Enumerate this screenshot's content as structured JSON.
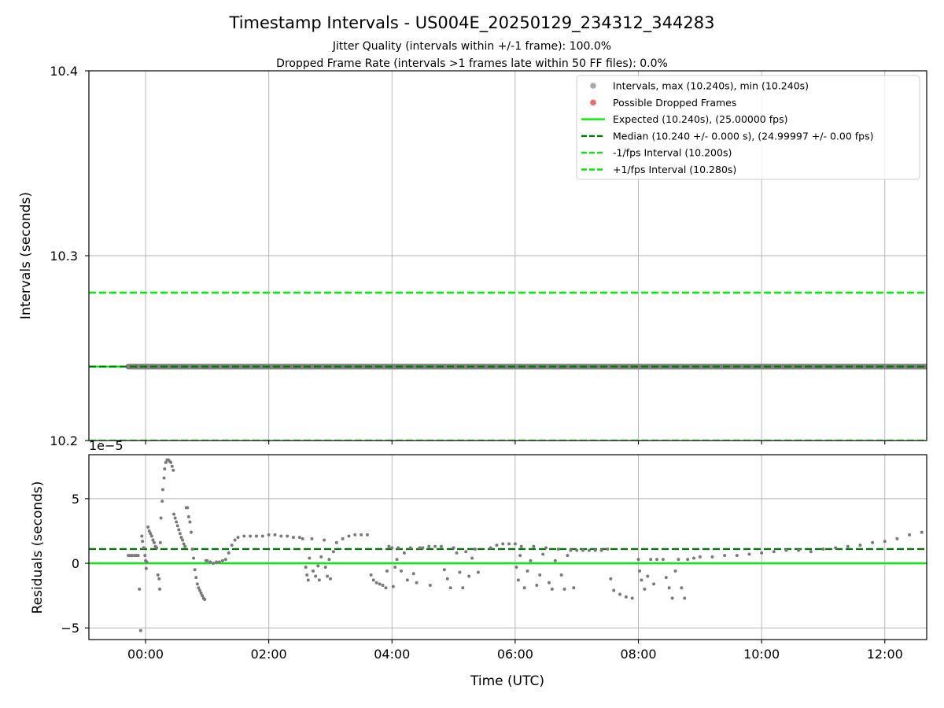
{
  "chart_data": {
    "type": "scatter",
    "title": "Timestamp Intervals - US004E_20250129_234312_344283",
    "subtitle_lines": [
      "Jitter Quality (intervals within +/-1 frame): 100.0%",
      "Dropped Frame Rate (intervals >1 frames late within 50 FF files): 0.0%"
    ],
    "x_axis": {
      "label": "Time (UTC)",
      "unit": "hours since 00:00 UTC",
      "range": [
        -0.92,
        12.68
      ],
      "ticks": [
        0,
        2,
        4,
        6,
        8,
        10,
        12
      ],
      "tick_labels": [
        "00:00",
        "02:00",
        "04:00",
        "06:00",
        "08:00",
        "10:00",
        "12:00"
      ]
    },
    "top_panel": {
      "ylabel": "Intervals (seconds)",
      "ylim": [
        10.2,
        10.4
      ],
      "yticks": [
        10.2,
        10.3,
        10.4
      ],
      "ytick_labels": [
        "10.2",
        "10.3",
        "10.4"
      ],
      "grid": true,
      "legend_position": "top-right",
      "legend": [
        {
          "label": "Intervals, max (10.240s), min (10.240s)",
          "kind": "marker",
          "color": "#a9a9a9"
        },
        {
          "label": "Possible Dropped Frames",
          "kind": "marker",
          "color": "#f06a6a"
        },
        {
          "label": "Expected (10.240s), (25.00000 fps)",
          "kind": "solid",
          "color": "#00ee00"
        },
        {
          "label": "Median (10.240 +/- 0.000 s), (24.99997 +/- 0.00 fps)",
          "kind": "dashed",
          "color": "#007a00"
        },
        {
          "label": "-1/fps Interval (10.200s)",
          "kind": "dashed",
          "color": "#00ee00"
        },
        {
          "label": "+1/fps Interval (10.280s)",
          "kind": "dashed",
          "color": "#00ee00"
        }
      ],
      "lines": {
        "expected": 10.24,
        "median": 10.24,
        "minus_one_frame": 10.2,
        "plus_one_frame": 10.28
      },
      "intervals_series": {
        "x_start": -0.28,
        "x_end": 12.68,
        "value": 10.24,
        "color": "#808080"
      }
    },
    "bottom_panel": {
      "ylabel": "Residuals (seconds)",
      "scale_label": "1e−5",
      "ylim": [
        -5.9,
        8.4
      ],
      "yticks": [
        -5,
        0,
        5
      ],
      "ytick_labels": [
        "−5",
        "0",
        "5"
      ],
      "grid": true,
      "expected_line": 0,
      "median_line": 1.1,
      "point_color": "#7a7a7a",
      "points": [
        [
          -0.28,
          0.6
        ],
        [
          -0.25,
          0.6
        ],
        [
          -0.22,
          0.6
        ],
        [
          -0.18,
          0.6
        ],
        [
          -0.15,
          0.6
        ],
        [
          -0.12,
          0.6
        ],
        [
          -0.1,
          -2.0
        ],
        [
          -0.08,
          -5.2
        ],
        [
          -0.06,
          2.1
        ],
        [
          -0.05,
          1.7
        ],
        [
          -0.03,
          1.2
        ],
        [
          -0.01,
          0.6
        ],
        [
          0.0,
          0.2
        ],
        [
          0.01,
          -0.4
        ],
        [
          0.02,
          0.1
        ],
        [
          0.04,
          2.8
        ],
        [
          0.06,
          2.5
        ],
        [
          0.08,
          2.3
        ],
        [
          0.1,
          2.1
        ],
        [
          0.12,
          1.8
        ],
        [
          0.14,
          1.6
        ],
        [
          0.16,
          1.3
        ],
        [
          0.18,
          1.2
        ],
        [
          0.2,
          -0.9
        ],
        [
          0.22,
          -1.2
        ],
        [
          0.23,
          -2.0
        ],
        [
          0.24,
          1.6
        ],
        [
          0.25,
          3.5
        ],
        [
          0.27,
          4.8
        ],
        [
          0.28,
          5.7
        ],
        [
          0.3,
          6.6
        ],
        [
          0.31,
          7.3
        ],
        [
          0.33,
          7.8
        ],
        [
          0.35,
          8.0
        ],
        [
          0.37,
          8.0
        ],
        [
          0.39,
          7.9
        ],
        [
          0.41,
          7.8
        ],
        [
          0.43,
          7.5
        ],
        [
          0.45,
          7.2
        ],
        [
          0.46,
          3.8
        ],
        [
          0.48,
          3.5
        ],
        [
          0.5,
          3.2
        ],
        [
          0.52,
          2.9
        ],
        [
          0.54,
          2.6
        ],
        [
          0.56,
          2.3
        ],
        [
          0.58,
          2.0
        ],
        [
          0.6,
          1.8
        ],
        [
          0.62,
          1.5
        ],
        [
          0.64,
          1.3
        ],
        [
          0.66,
          4.3
        ],
        [
          0.68,
          4.3
        ],
        [
          0.7,
          3.6
        ],
        [
          0.72,
          3.2
        ],
        [
          0.74,
          2.4
        ],
        [
          0.76,
          1.1
        ],
        [
          0.78,
          0.4
        ],
        [
          0.8,
          -0.5
        ],
        [
          0.82,
          -1.1
        ],
        [
          0.84,
          -1.6
        ],
        [
          0.86,
          -1.9
        ],
        [
          0.88,
          -2.1
        ],
        [
          0.9,
          -2.3
        ],
        [
          0.92,
          -2.5
        ],
        [
          0.94,
          -2.7
        ],
        [
          0.96,
          -2.8
        ],
        [
          0.98,
          0.2
        ],
        [
          1.0,
          0.2
        ],
        [
          1.05,
          0.1
        ],
        [
          1.1,
          0.0
        ],
        [
          1.15,
          0.1
        ],
        [
          1.2,
          0.1
        ],
        [
          1.25,
          0.2
        ],
        [
          1.3,
          0.3
        ],
        [
          1.35,
          0.8
        ],
        [
          1.4,
          1.4
        ],
        [
          1.45,
          1.8
        ],
        [
          1.5,
          2.0
        ],
        [
          1.6,
          2.1
        ],
        [
          1.7,
          2.1
        ],
        [
          1.8,
          2.1
        ],
        [
          1.9,
          2.1
        ],
        [
          2.0,
          2.2
        ],
        [
          2.1,
          2.2
        ],
        [
          2.2,
          2.1
        ],
        [
          2.3,
          2.1
        ],
        [
          2.4,
          2.0
        ],
        [
          2.5,
          2.0
        ],
        [
          2.55,
          1.9
        ],
        [
          2.6,
          -0.3
        ],
        [
          2.62,
          -0.9
        ],
        [
          2.64,
          -1.3
        ],
        [
          2.66,
          0.4
        ],
        [
          2.7,
          1.9
        ],
        [
          2.72,
          -0.6
        ],
        [
          2.76,
          -1.0
        ],
        [
          2.8,
          -0.2
        ],
        [
          2.82,
          -1.3
        ],
        [
          2.85,
          0.5
        ],
        [
          2.9,
          1.8
        ],
        [
          2.92,
          -0.3
        ],
        [
          2.95,
          -1.0
        ],
        [
          2.98,
          0.3
        ],
        [
          3.0,
          -1.2
        ],
        [
          3.05,
          0.9
        ],
        [
          3.1,
          1.6
        ],
        [
          3.2,
          1.9
        ],
        [
          3.3,
          2.1
        ],
        [
          3.4,
          2.2
        ],
        [
          3.5,
          2.2
        ],
        [
          3.6,
          2.2
        ],
        [
          3.66,
          -0.9
        ],
        [
          3.7,
          -1.3
        ],
        [
          3.75,
          -1.5
        ],
        [
          3.8,
          -1.6
        ],
        [
          3.85,
          -1.7
        ],
        [
          3.9,
          -1.9
        ],
        [
          3.92,
          -0.6
        ],
        [
          3.95,
          1.3
        ],
        [
          4.0,
          1.2
        ],
        [
          4.02,
          -1.8
        ],
        [
          4.05,
          -0.3
        ],
        [
          4.08,
          0.3
        ],
        [
          4.1,
          1.2
        ],
        [
          4.15,
          -0.6
        ],
        [
          4.2,
          0.8
        ],
        [
          4.25,
          -1.3
        ],
        [
          4.3,
          1.2
        ],
        [
          4.35,
          -0.8
        ],
        [
          4.4,
          -1.5
        ],
        [
          4.45,
          1.2
        ],
        [
          4.5,
          1.2
        ],
        [
          4.6,
          1.3
        ],
        [
          4.62,
          -1.7
        ],
        [
          4.7,
          1.3
        ],
        [
          4.8,
          1.3
        ],
        [
          4.85,
          -0.5
        ],
        [
          4.9,
          -1.2
        ],
        [
          4.95,
          -1.9
        ],
        [
          5.0,
          1.2
        ],
        [
          5.05,
          0.8
        ],
        [
          5.1,
          -0.7
        ],
        [
          5.15,
          -1.9
        ],
        [
          5.2,
          0.9
        ],
        [
          5.25,
          -1.0
        ],
        [
          5.3,
          0.4
        ],
        [
          5.35,
          1.1
        ],
        [
          5.4,
          -0.7
        ],
        [
          5.6,
          1.2
        ],
        [
          5.7,
          1.4
        ],
        [
          5.8,
          1.5
        ],
        [
          5.9,
          1.5
        ],
        [
          6.0,
          1.5
        ],
        [
          6.02,
          -0.3
        ],
        [
          6.05,
          -1.3
        ],
        [
          6.08,
          0.6
        ],
        [
          6.1,
          1.3
        ],
        [
          6.15,
          -1.9
        ],
        [
          6.2,
          -0.6
        ],
        [
          6.25,
          0.2
        ],
        [
          6.3,
          1.3
        ],
        [
          6.35,
          -1.7
        ],
        [
          6.4,
          -0.9
        ],
        [
          6.45,
          0.7
        ],
        [
          6.5,
          1.2
        ],
        [
          6.55,
          -1.5
        ],
        [
          6.6,
          -2.0
        ],
        [
          6.65,
          0.2
        ],
        [
          6.7,
          1.1
        ],
        [
          6.75,
          -0.9
        ],
        [
          6.8,
          -2.0
        ],
        [
          6.85,
          0.6
        ],
        [
          6.9,
          1.0
        ],
        [
          6.95,
          -1.9
        ],
        [
          7.0,
          1.0
        ],
        [
          7.1,
          1.0
        ],
        [
          7.2,
          1.0
        ],
        [
          7.3,
          1.0
        ],
        [
          7.4,
          1.0
        ],
        [
          7.5,
          1.1
        ],
        [
          7.55,
          -1.2
        ],
        [
          7.6,
          -2.1
        ],
        [
          7.7,
          -2.4
        ],
        [
          7.8,
          -2.6
        ],
        [
          7.9,
          -2.7
        ],
        [
          8.0,
          0.3
        ],
        [
          8.02,
          -0.6
        ],
        [
          8.05,
          -1.3
        ],
        [
          8.1,
          -2.0
        ],
        [
          8.15,
          -1.0
        ],
        [
          8.2,
          0.3
        ],
        [
          8.25,
          -1.6
        ],
        [
          8.3,
          0.3
        ],
        [
          8.4,
          0.3
        ],
        [
          8.45,
          -1.1
        ],
        [
          8.5,
          -1.9
        ],
        [
          8.55,
          -2.7
        ],
        [
          8.6,
          -0.6
        ],
        [
          8.65,
          0.3
        ],
        [
          8.7,
          -1.9
        ],
        [
          8.75,
          -2.7
        ],
        [
          8.8,
          0.3
        ],
        [
          8.9,
          0.4
        ],
        [
          9.0,
          0.5
        ],
        [
          9.2,
          0.5
        ],
        [
          9.4,
          0.6
        ],
        [
          9.6,
          0.6
        ],
        [
          9.8,
          0.7
        ],
        [
          10.0,
          0.8
        ],
        [
          10.2,
          0.9
        ],
        [
          10.4,
          1.0
        ],
        [
          10.6,
          1.0
        ],
        [
          10.8,
          0.9
        ],
        [
          11.0,
          1.1
        ],
        [
          11.2,
          1.2
        ],
        [
          11.4,
          1.3
        ],
        [
          11.6,
          1.4
        ],
        [
          11.8,
          1.6
        ],
        [
          12.0,
          1.7
        ],
        [
          12.2,
          1.9
        ],
        [
          12.4,
          2.2
        ],
        [
          12.6,
          2.4
        ]
      ]
    }
  }
}
